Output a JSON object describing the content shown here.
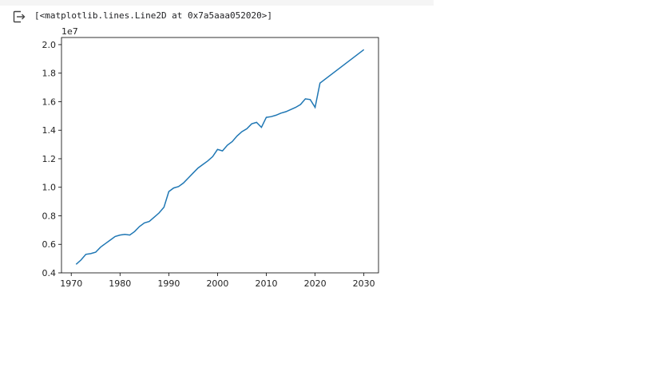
{
  "output": {
    "icon": "output-redirect-icon",
    "repr": "[<matplotlib.lines.Line2D at 0x7a5aaa052020>]"
  },
  "chart_data": {
    "type": "line",
    "title": "",
    "xlabel": "",
    "ylabel": "",
    "y_offset_label": "1e7",
    "xlim": [
      1968,
      2033
    ],
    "ylim": [
      0.4,
      2.05
    ],
    "x_ticks": [
      1970,
      1980,
      1990,
      2000,
      2010,
      2020,
      2030
    ],
    "x_tick_labels": [
      "1970",
      "1980",
      "1990",
      "2000",
      "2010",
      "2020",
      "2030"
    ],
    "y_ticks": [
      0.4,
      0.6,
      0.8,
      1.0,
      1.2,
      1.4,
      1.6,
      1.8,
      2.0
    ],
    "y_tick_labels": [
      "0.4",
      "0.6",
      "0.8",
      "1.0",
      "1.2",
      "1.4",
      "1.6",
      "1.8",
      "2.0"
    ],
    "grid": false,
    "line_color": "#1f77b4",
    "series": [
      {
        "x": [
          1971,
          1972,
          1973,
          1974,
          1975,
          1976,
          1977,
          1978,
          1979,
          1980,
          1981,
          1982,
          1983,
          1984,
          1985,
          1986,
          1987,
          1988,
          1989,
          1990,
          1991,
          1992,
          1993,
          1994,
          1995,
          1996,
          1997,
          1998,
          1999,
          2000,
          2001,
          2002,
          2003,
          2004,
          2005,
          2006,
          2007,
          2008,
          2009,
          2010,
          2011,
          2012,
          2013,
          2014,
          2015,
          2016,
          2017,
          2018,
          2019,
          2020,
          2021,
          2030
        ],
        "values": [
          0.46,
          0.49,
          0.53,
          0.535,
          0.545,
          0.58,
          0.605,
          0.63,
          0.655,
          0.665,
          0.67,
          0.665,
          0.69,
          0.725,
          0.75,
          0.76,
          0.79,
          0.82,
          0.86,
          0.97,
          0.995,
          1.005,
          1.03,
          1.065,
          1.1,
          1.135,
          1.16,
          1.185,
          1.215,
          1.265,
          1.255,
          1.295,
          1.32,
          1.36,
          1.39,
          1.41,
          1.445,
          1.455,
          1.42,
          1.49,
          1.495,
          1.505,
          1.52,
          1.53,
          1.545,
          1.56,
          1.58,
          1.62,
          1.615,
          1.56,
          1.73,
          1.965
        ]
      }
    ]
  }
}
